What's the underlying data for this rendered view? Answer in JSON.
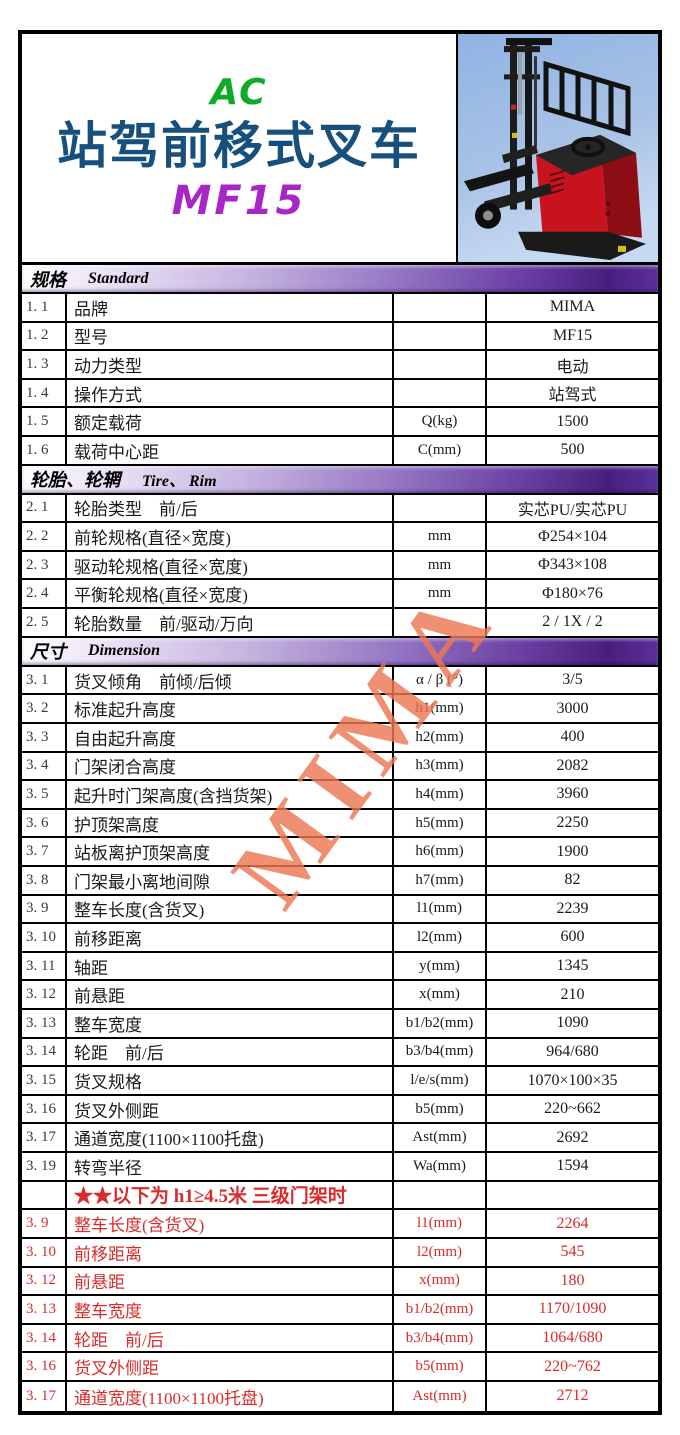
{
  "header": {
    "brand_line": "AC",
    "title": "站驾前移式叉车",
    "model": "MF15"
  },
  "watermark": {
    "text": "MIMA"
  },
  "colors": {
    "brand_green": "#0faa28",
    "title_blue": "#17507d",
    "model_purple": "#a825c8",
    "band_dark_purple": "#47207e",
    "band_light": "#ece5f6",
    "red_text": "#d92b2b",
    "photo_sky_blue": "#a9c3e6",
    "watermark_salmon": "#ed7854",
    "forklift_red": "#c8131f"
  },
  "table": {
    "sections": [
      {
        "heading_cjk": "规格",
        "heading_en": "Standard",
        "rows": [
          {
            "num": "1. 1",
            "label": "品牌",
            "unit": "",
            "value": "MIMA",
            "red": false
          },
          {
            "num": "1. 2",
            "label": "型号",
            "unit": "",
            "value": "MF15",
            "red": false
          },
          {
            "num": "1. 3",
            "label": "动力类型",
            "unit": "",
            "value": "电动",
            "red": false
          },
          {
            "num": "1. 4",
            "label": "操作方式",
            "unit": "",
            "value": "站驾式",
            "red": false
          },
          {
            "num": "1. 5",
            "label": "额定载荷",
            "unit": "Q(kg)",
            "value": "1500",
            "red": false
          },
          {
            "num": "1. 6",
            "label": "载荷中心距",
            "unit": "C(mm)",
            "value": "500",
            "red": false
          }
        ]
      },
      {
        "heading_cjk": "轮胎、轮辋",
        "heading_en": "Tire、 Rim",
        "rows": [
          {
            "num": "2. 1",
            "label": "轮胎类型　前/后",
            "unit": "",
            "value": "实芯PU/实芯PU",
            "red": false
          },
          {
            "num": "2. 2",
            "label": "前轮规格(直径×宽度)",
            "unit": "mm",
            "value": "Φ254×104",
            "red": false
          },
          {
            "num": "2. 3",
            "label": "驱动轮规格(直径×宽度)",
            "unit": "mm",
            "value": "Φ343×108",
            "red": false
          },
          {
            "num": "2. 4",
            "label": "平衡轮规格(直径×宽度)",
            "unit": "mm",
            "value": "Φ180×76",
            "red": false
          },
          {
            "num": "2. 5",
            "label": "轮胎数量　前/驱动/万向",
            "unit": "",
            "value": "2 / 1X / 2",
            "red": false
          }
        ]
      },
      {
        "heading_cjk": "尺寸",
        "heading_en": "Dimension",
        "rows": [
          {
            "num": "3. 1",
            "label": "货叉倾角　前倾/后倾",
            "unit": "α / β (°)",
            "value": "3/5",
            "red": false
          },
          {
            "num": "3. 2",
            "label": "标准起升高度",
            "unit": "h1(mm)",
            "value": "3000",
            "red": false
          },
          {
            "num": "3. 3",
            "label": "自由起升高度",
            "unit": "h2(mm)",
            "value": "400",
            "red": false
          },
          {
            "num": "3. 4",
            "label": "门架闭合高度",
            "unit": "h3(mm)",
            "value": "2082",
            "red": false
          },
          {
            "num": "3. 5",
            "label": "起升时门架高度(含挡货架)",
            "unit": "h4(mm)",
            "value": "3960",
            "red": false
          },
          {
            "num": "3. 6",
            "label": "护顶架高度",
            "unit": "h5(mm)",
            "value": "2250",
            "red": false
          },
          {
            "num": "3. 7",
            "label": "站板离护顶架高度",
            "unit": "h6(mm)",
            "value": "1900",
            "red": false
          },
          {
            "num": "3. 8",
            "label": "门架最小离地间隙",
            "unit": "h7(mm)",
            "value": "82",
            "red": false
          },
          {
            "num": "3. 9",
            "label": "整车长度(含货叉)",
            "unit": "l1(mm)",
            "value": "2239",
            "red": false
          },
          {
            "num": "3. 10",
            "label": "前移距离",
            "unit": "l2(mm)",
            "value": "600",
            "red": false
          },
          {
            "num": "3. 11",
            "label": "轴距",
            "unit": "y(mm)",
            "value": "1345",
            "red": false
          },
          {
            "num": "3. 12",
            "label": "前悬距",
            "unit": "x(mm)",
            "value": "210",
            "red": false
          },
          {
            "num": "3. 13",
            "label": "整车宽度",
            "unit": "b1/b2(mm)",
            "value": "1090",
            "red": false
          },
          {
            "num": "3. 14",
            "label": "轮距　前/后",
            "unit": "b3/b4(mm)",
            "value": "964/680",
            "red": false
          },
          {
            "num": "3. 15",
            "label": "货叉规格",
            "unit": "l/e/s(mm)",
            "value": "1070×100×35",
            "red": false
          },
          {
            "num": "3. 16",
            "label": "货叉外侧距",
            "unit": "b5(mm)",
            "value": "220~662",
            "red": false
          },
          {
            "num": "3. 17",
            "label": "通道宽度(1100×1100托盘)",
            "unit": "Ast(mm)",
            "value": "2692",
            "red": false
          },
          {
            "num": "3. 19",
            "label": "转弯半径",
            "unit": "Wa(mm)",
            "value": "1594",
            "red": false
          },
          {
            "num": "",
            "label": "★★以下为 h1≥4.5米 三级门架时",
            "unit": "",
            "value": "",
            "red": true,
            "star": true
          },
          {
            "num": "3. 9",
            "label": "整车长度(含货叉)",
            "unit": "l1(mm)",
            "value": "2264",
            "red": true
          },
          {
            "num": "3. 10",
            "label": "前移距离",
            "unit": "l2(mm)",
            "value": "545",
            "red": true
          },
          {
            "num": "3. 12",
            "label": "前悬距",
            "unit": "x(mm)",
            "value": "180",
            "red": true
          },
          {
            "num": "3. 13",
            "label": "整车宽度",
            "unit": "b1/b2(mm)",
            "value": "1170/1090",
            "red": true
          },
          {
            "num": "3. 14",
            "label": "轮距　前/后",
            "unit": "b3/b4(mm)",
            "value": "1064/680",
            "red": true
          },
          {
            "num": "3. 16",
            "label": "货叉外侧距",
            "unit": "b5(mm)",
            "value": "220~762",
            "red": true
          },
          {
            "num": "3. 17",
            "label": "通道宽度(1100×1100托盘)",
            "unit": "Ast(mm)",
            "value": "2712",
            "red": true
          }
        ]
      }
    ]
  }
}
